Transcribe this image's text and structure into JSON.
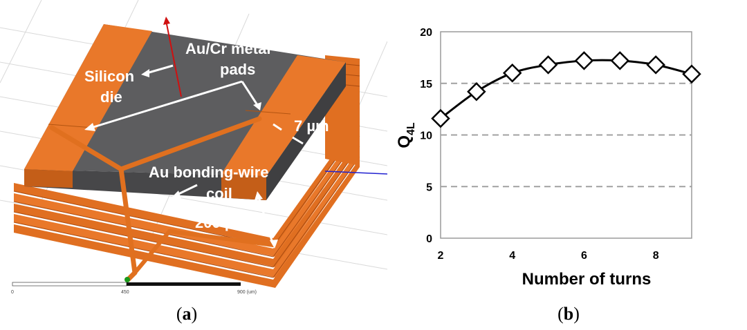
{
  "panel_a": {
    "labels": {
      "silicon_line1": "Silicon",
      "silicon_line2": "die",
      "metal_line1": "Au/Cr metal",
      "metal_line2": "pads",
      "gap": "7 µm",
      "wire_line1": "Au bonding-wire",
      "wire_line2": "coil",
      "height": "200 µm"
    },
    "scale_bar": {
      "start": "0",
      "mid": "450",
      "end": "900 (um)"
    },
    "caption": {
      "open": "(",
      "letter": "a",
      "close": ")"
    },
    "colors": {
      "copper": "#e9782a",
      "die": "#5d5d5f",
      "grid": "#d7d7d7"
    }
  },
  "panel_b": {
    "caption": {
      "open": "(",
      "letter": "b",
      "close": ")"
    }
  },
  "chart_data": {
    "type": "line",
    "x": [
      2,
      3,
      4,
      5,
      6,
      7,
      8,
      9
    ],
    "series": [
      {
        "values": [
          11.6,
          14.2,
          16.0,
          16.8,
          17.2,
          17.2,
          16.8,
          15.9
        ],
        "marker": "diamond",
        "color": "#000000"
      }
    ],
    "xlabel": "Number of turns",
    "ylabel_main": "Q",
    "ylabel_sub": "4L",
    "xlim": [
      2,
      9
    ],
    "ylim": [
      0,
      20
    ],
    "xticks": [
      "2",
      "4",
      "6",
      "8"
    ],
    "yticks": [
      "0",
      "5",
      "10",
      "15",
      "20"
    ],
    "ygrid": [
      5,
      10,
      15
    ],
    "grid": "dashed horizontal"
  }
}
